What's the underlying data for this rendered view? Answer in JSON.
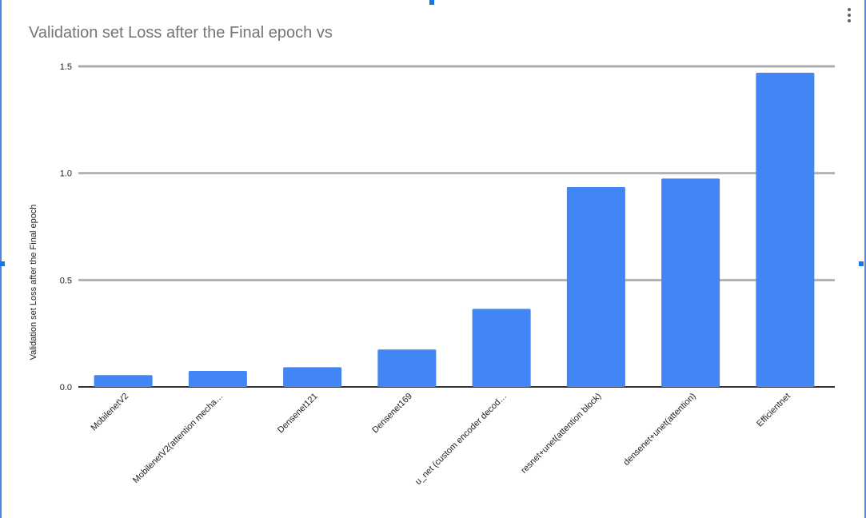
{
  "title": "Validation set Loss after the Final epoch vs",
  "menu_icon": "more-vert-icon",
  "colors": {
    "bar": "#4285f4",
    "grid": "#b7b7b7",
    "baseline": "#333333",
    "title": "#757575",
    "selection_border": "#4a86e8"
  },
  "chart_data": {
    "type": "bar",
    "title": "Validation set Loss after the Final epoch vs",
    "xlabel": "",
    "ylabel": "Validation set Loss after the Final epoch",
    "categories": [
      "MobilenetV2",
      "MobilenetV2(attention mecha…",
      "Densenet121",
      "Densenet169",
      "u_net (custom encoder decod…",
      "resnet+unet(attention block)",
      "densenet+unet(attention)",
      "Efficientnet"
    ],
    "values": [
      0.055,
      0.075,
      0.092,
      0.175,
      0.365,
      0.935,
      0.975,
      1.47
    ],
    "ylim": [
      0,
      1.5
    ],
    "yticks": [
      "0.0",
      "0.5",
      "1.0",
      "1.5"
    ],
    "grid": true,
    "legend": "none"
  }
}
